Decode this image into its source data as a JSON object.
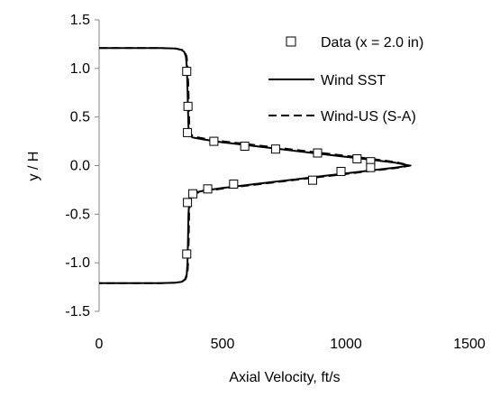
{
  "chart_data": {
    "type": "scatter",
    "xlabel": "Axial Velocity, ft/s",
    "ylabel": "y / H",
    "xlim": [
      0,
      1500
    ],
    "ylim": [
      -1.5,
      1.5
    ],
    "x_ticks": [
      "0",
      "500",
      "1000",
      "1500"
    ],
    "x_tick_values": [
      0,
      500,
      1000,
      1500
    ],
    "y_ticks": [
      "1.5",
      "1.0",
      "0.5",
      "0.0",
      "-0.5",
      "-1.0",
      "-1.5"
    ],
    "y_tick_values": [
      1.5,
      1.0,
      0.5,
      0.0,
      -0.5,
      -1.0,
      -1.5
    ],
    "grid": false,
    "legend_position": "top-right",
    "series": [
      {
        "name": "Data (x = 2.0 in)",
        "style": "open-square-marker",
        "color": "#000000",
        "points": [
          [
            355,
            0.97
          ],
          [
            360,
            0.61
          ],
          [
            358,
            0.34
          ],
          [
            465,
            0.25
          ],
          [
            590,
            0.2
          ],
          [
            715,
            0.17
          ],
          [
            885,
            0.13
          ],
          [
            1045,
            0.07
          ],
          [
            1100,
            0.04
          ],
          [
            1100,
            -0.02
          ],
          [
            980,
            -0.06
          ],
          [
            865,
            -0.15
          ],
          [
            545,
            -0.19
          ],
          [
            440,
            -0.24
          ],
          [
            380,
            -0.29
          ],
          [
            358,
            -0.38
          ],
          [
            355,
            -0.91
          ]
        ]
      },
      {
        "name": "Wind SST",
        "style": "solid-line",
        "color": "#000000",
        "points": [
          [
            0,
            1.21
          ],
          [
            250,
            1.21
          ],
          [
            310,
            1.205
          ],
          [
            335,
            1.19
          ],
          [
            345,
            1.17
          ],
          [
            352,
            1.12
          ],
          [
            356,
            1.0
          ],
          [
            358,
            0.8
          ],
          [
            360,
            0.6
          ],
          [
            362,
            0.4
          ],
          [
            365,
            0.32
          ],
          [
            378,
            0.29
          ],
          [
            420,
            0.27
          ],
          [
            500,
            0.24
          ],
          [
            600,
            0.21
          ],
          [
            700,
            0.18
          ],
          [
            800,
            0.15
          ],
          [
            900,
            0.12
          ],
          [
            1000,
            0.09
          ],
          [
            1100,
            0.06
          ],
          [
            1200,
            0.03
          ],
          [
            1258,
            0.0
          ],
          [
            1200,
            -0.02
          ],
          [
            1100,
            -0.05
          ],
          [
            1000,
            -0.08
          ],
          [
            900,
            -0.11
          ],
          [
            800,
            -0.14
          ],
          [
            700,
            -0.17
          ],
          [
            600,
            -0.2
          ],
          [
            500,
            -0.23
          ],
          [
            420,
            -0.26
          ],
          [
            385,
            -0.28
          ],
          [
            372,
            -0.3
          ],
          [
            366,
            -0.35
          ],
          [
            362,
            -0.5
          ],
          [
            360,
            -0.8
          ],
          [
            358,
            -1.0
          ],
          [
            355,
            -1.12
          ],
          [
            348,
            -1.17
          ],
          [
            335,
            -1.195
          ],
          [
            310,
            -1.205
          ],
          [
            250,
            -1.21
          ],
          [
            0,
            -1.21
          ]
        ]
      },
      {
        "name": "Wind-US (S-A)",
        "style": "dashed-line",
        "color": "#000000",
        "points": [
          [
            0,
            1.21
          ],
          [
            250,
            1.21
          ],
          [
            312,
            1.205
          ],
          [
            338,
            1.19
          ],
          [
            348,
            1.17
          ],
          [
            355,
            1.12
          ],
          [
            359,
            1.0
          ],
          [
            362,
            0.8
          ],
          [
            364,
            0.6
          ],
          [
            366,
            0.4
          ],
          [
            370,
            0.33
          ],
          [
            382,
            0.3
          ],
          [
            425,
            0.28
          ],
          [
            505,
            0.25
          ],
          [
            605,
            0.22
          ],
          [
            705,
            0.19
          ],
          [
            805,
            0.16
          ],
          [
            905,
            0.13
          ],
          [
            1005,
            0.1
          ],
          [
            1105,
            0.07
          ],
          [
            1205,
            0.035
          ],
          [
            1262,
            0.0
          ],
          [
            1205,
            -0.025
          ],
          [
            1105,
            -0.055
          ],
          [
            1005,
            -0.085
          ],
          [
            905,
            -0.115
          ],
          [
            805,
            -0.145
          ],
          [
            705,
            -0.175
          ],
          [
            605,
            -0.205
          ],
          [
            505,
            -0.235
          ],
          [
            425,
            -0.265
          ],
          [
            390,
            -0.285
          ],
          [
            376,
            -0.31
          ],
          [
            369,
            -0.36
          ],
          [
            365,
            -0.5
          ],
          [
            363,
            -0.8
          ],
          [
            361,
            -1.0
          ],
          [
            358,
            -1.12
          ],
          [
            350,
            -1.17
          ],
          [
            337,
            -1.195
          ],
          [
            312,
            -1.205
          ],
          [
            250,
            -1.21
          ],
          [
            0,
            -1.21
          ]
        ]
      }
    ]
  }
}
